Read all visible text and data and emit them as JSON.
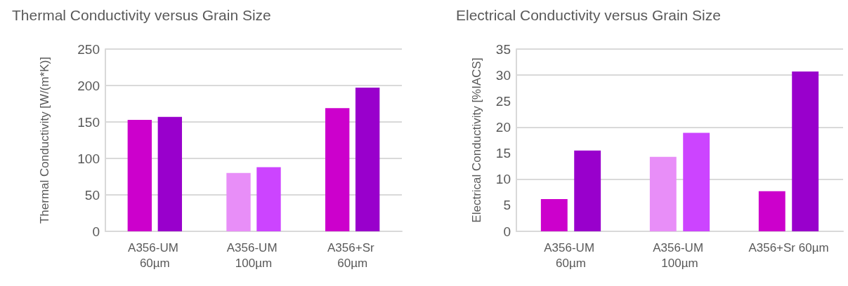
{
  "chart_data": [
    {
      "type": "bar",
      "title": "Thermal Conductivity versus Grain Size",
      "ylabel": "Thermal Conductivity [W/(m*K)]",
      "categories": [
        "A356-UM 60µm",
        "A356-UM 100µm",
        "A356+Sr 60µm"
      ],
      "series": [
        {
          "colors": [
            "#cc00cc",
            "#e88ef8",
            "#cc00cc"
          ],
          "values": [
            153,
            80,
            169
          ]
        },
        {
          "colors": [
            "#9900cc",
            "#cc44ff",
            "#9900cc"
          ],
          "values": [
            157,
            88,
            197
          ]
        }
      ],
      "ylim": [
        0,
        250
      ],
      "yticks": [
        0,
        50,
        100,
        150,
        200,
        250
      ],
      "grid": "y"
    },
    {
      "type": "bar",
      "title": "Electrical Conductivity versus Grain Size",
      "ylabel": "Electrical Conductivity [%IACS]",
      "categories": [
        "A356-UM 60µm",
        "A356-UM 100µm",
        "A356+Sr 60µm"
      ],
      "series": [
        {
          "colors": [
            "#cc00cc",
            "#e88ef8",
            "#cc00cc"
          ],
          "values": [
            6.2,
            14.3,
            7.7
          ]
        },
        {
          "colors": [
            "#9900cc",
            "#cc44ff",
            "#9900cc"
          ],
          "values": [
            15.5,
            18.9,
            30.7
          ]
        }
      ],
      "ylim": [
        0,
        35
      ],
      "yticks": [
        0,
        5,
        10,
        15,
        20,
        25,
        30,
        35
      ],
      "grid": "y"
    }
  ]
}
